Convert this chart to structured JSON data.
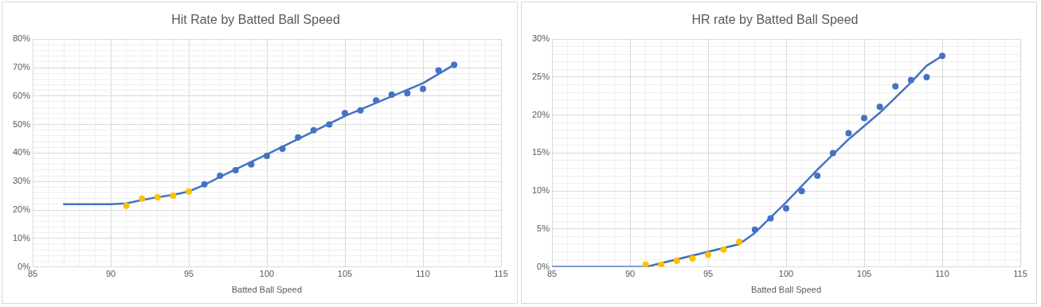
{
  "chart_data": [
    {
      "type": "scatter",
      "title": "Hit Rate by Batted Ball Speed",
      "xlabel": "Batted Ball Speed",
      "xlim": [
        85,
        115
      ],
      "ylim": [
        0,
        80
      ],
      "xticks": [
        85,
        {
          "value": 86,
          "label": null
        },
        {
          "value": 87,
          "label": null
        },
        {
          "value": 88,
          "label": null
        },
        {
          "value": 89,
          "label": null
        },
        90,
        {
          "value": 91,
          "label": null
        },
        {
          "value": 92,
          "label": null
        },
        {
          "value": 93,
          "label": null
        },
        {
          "value": 94,
          "label": null
        },
        95,
        {
          "value": 96,
          "label": null
        },
        {
          "value": 97,
          "label": null
        },
        {
          "value": 98,
          "label": null
        },
        {
          "value": 99,
          "label": null
        },
        100,
        {
          "value": 101,
          "label": null
        },
        {
          "value": 102,
          "label": null
        },
        {
          "value": 103,
          "label": null
        },
        {
          "value": 104,
          "label": null
        },
        105,
        {
          "value": 106,
          "label": null
        },
        {
          "value": 107,
          "label": null
        },
        {
          "value": 108,
          "label": null
        },
        {
          "value": 109,
          "label": null
        },
        110,
        {
          "value": 111,
          "label": null
        },
        {
          "value": 112,
          "label": null
        },
        {
          "value": 113,
          "label": null
        },
        {
          "value": 114,
          "label": null
        },
        115
      ],
      "yticks": [
        {
          "value": 0,
          "label": "0%"
        },
        {
          "value": 2,
          "label": null
        },
        {
          "value": 4,
          "label": null
        },
        {
          "value": 6,
          "label": null
        },
        {
          "value": 8,
          "label": null
        },
        {
          "value": 10,
          "label": "10%"
        },
        {
          "value": 12,
          "label": null
        },
        {
          "value": 14,
          "label": null
        },
        {
          "value": 16,
          "label": null
        },
        {
          "value": 18,
          "label": null
        },
        {
          "value": 20,
          "label": "20%"
        },
        {
          "value": 22,
          "label": null
        },
        {
          "value": 24,
          "label": null
        },
        {
          "value": 26,
          "label": null
        },
        {
          "value": 28,
          "label": null
        },
        {
          "value": 30,
          "label": "30%"
        },
        {
          "value": 32,
          "label": null
        },
        {
          "value": 34,
          "label": null
        },
        {
          "value": 36,
          "label": null
        },
        {
          "value": 38,
          "label": null
        },
        {
          "value": 40,
          "label": "40%"
        },
        {
          "value": 42,
          "label": null
        },
        {
          "value": 44,
          "label": null
        },
        {
          "value": 46,
          "label": null
        },
        {
          "value": 48,
          "label": null
        },
        {
          "value": 50,
          "label": "50%"
        },
        {
          "value": 52,
          "label": null
        },
        {
          "value": 54,
          "label": null
        },
        {
          "value": 56,
          "label": null
        },
        {
          "value": 58,
          "label": null
        },
        {
          "value": 60,
          "label": "60%"
        },
        {
          "value": 62,
          "label": null
        },
        {
          "value": 64,
          "label": null
        },
        {
          "value": 66,
          "label": null
        },
        {
          "value": 68,
          "label": null
        },
        {
          "value": 70,
          "label": "70%"
        },
        {
          "value": 72,
          "label": null
        },
        {
          "value": 74,
          "label": null
        },
        {
          "value": 76,
          "label": null
        },
        {
          "value": 78,
          "label": null
        },
        {
          "value": 80,
          "label": "80%"
        }
      ],
      "grid": true,
      "legend": false,
      "series": [
        {
          "type": "line",
          "color": "#4472c4",
          "marker": "none",
          "line_style": "solid",
          "x": [
            87,
            90,
            91,
            92,
            93,
            94,
            95,
            96,
            97,
            100,
            105,
            110,
            112
          ],
          "values": [
            22,
            22,
            22.3,
            23.5,
            24.5,
            25.3,
            26.5,
            28.8,
            31.6,
            39.5,
            53,
            64.5,
            71
          ]
        },
        {
          "color": "#ffc000",
          "marker": "circle",
          "x": [
            91,
            92,
            93,
            94,
            95
          ],
          "values": [
            21.5,
            24,
            24.5,
            25,
            26.5
          ]
        },
        {
          "color": "#4472c4",
          "marker": "circle",
          "x": [
            96,
            97,
            98,
            99,
            100,
            101,
            102,
            103,
            104,
            105,
            106,
            107,
            108,
            109,
            110,
            111,
            112
          ],
          "values": [
            29,
            32,
            34,
            36,
            39,
            41.5,
            45.5,
            48,
            50,
            54,
            55,
            58.5,
            60.5,
            61,
            62.5,
            69,
            71
          ]
        }
      ]
    },
    {
      "type": "scatter",
      "title": "HR rate by Batted Ball Speed",
      "xlabel": "Batted Ball Speed",
      "xlim": [
        85,
        115
      ],
      "ylim": [
        0,
        30
      ],
      "xticks": [
        85,
        {
          "value": 86,
          "label": null
        },
        {
          "value": 87,
          "label": null
        },
        {
          "value": 88,
          "label": null
        },
        {
          "value": 89,
          "label": null
        },
        90,
        {
          "value": 91,
          "label": null
        },
        {
          "value": 92,
          "label": null
        },
        {
          "value": 93,
          "label": null
        },
        {
          "value": 94,
          "label": null
        },
        95,
        {
          "value": 96,
          "label": null
        },
        {
          "value": 97,
          "label": null
        },
        {
          "value": 98,
          "label": null
        },
        {
          "value": 99,
          "label": null
        },
        100,
        {
          "value": 101,
          "label": null
        },
        {
          "value": 102,
          "label": null
        },
        {
          "value": 103,
          "label": null
        },
        {
          "value": 104,
          "label": null
        },
        105,
        {
          "value": 106,
          "label": null
        },
        {
          "value": 107,
          "label": null
        },
        {
          "value": 108,
          "label": null
        },
        {
          "value": 109,
          "label": null
        },
        110,
        {
          "value": 111,
          "label": null
        },
        {
          "value": 112,
          "label": null
        },
        {
          "value": 113,
          "label": null
        },
        {
          "value": 114,
          "label": null
        },
        115
      ],
      "yticks": [
        {
          "value": 0,
          "label": "0%"
        },
        {
          "value": 1,
          "label": null
        },
        {
          "value": 2,
          "label": null
        },
        {
          "value": 3,
          "label": null
        },
        {
          "value": 4,
          "label": null
        },
        {
          "value": 5,
          "label": "5%"
        },
        {
          "value": 6,
          "label": null
        },
        {
          "value": 7,
          "label": null
        },
        {
          "value": 8,
          "label": null
        },
        {
          "value": 9,
          "label": null
        },
        {
          "value": 10,
          "label": "10%"
        },
        {
          "value": 11,
          "label": null
        },
        {
          "value": 12,
          "label": null
        },
        {
          "value": 13,
          "label": null
        },
        {
          "value": 14,
          "label": null
        },
        {
          "value": 15,
          "label": "15%"
        },
        {
          "value": 16,
          "label": null
        },
        {
          "value": 17,
          "label": null
        },
        {
          "value": 18,
          "label": null
        },
        {
          "value": 19,
          "label": null
        },
        {
          "value": 20,
          "label": "20%"
        },
        {
          "value": 21,
          "label": null
        },
        {
          "value": 22,
          "label": null
        },
        {
          "value": 23,
          "label": null
        },
        {
          "value": 24,
          "label": null
        },
        {
          "value": 25,
          "label": "25%"
        },
        {
          "value": 26,
          "label": null
        },
        {
          "value": 27,
          "label": null
        },
        {
          "value": 28,
          "label": null
        },
        {
          "value": 29,
          "label": null
        },
        {
          "value": 30,
          "label": "30%"
        }
      ],
      "grid": true,
      "legend": false,
      "series": [
        {
          "type": "line",
          "color": "#4472c4",
          "marker": "none",
          "line_style": "solid",
          "x": [
            85,
            91,
            97,
            98,
            100,
            102,
            104,
            106,
            108,
            109,
            110
          ],
          "values": [
            0,
            0,
            3,
            4.5,
            8.5,
            12.8,
            16.8,
            20.3,
            24.3,
            26.5,
            27.8
          ]
        },
        {
          "type": "line",
          "color": "#a5a5a5",
          "marker": "none",
          "line_style": "dotted",
          "x": [
            91,
            97
          ],
          "values": [
            0,
            3
          ]
        },
        {
          "color": "#ffc000",
          "marker": "circle",
          "x": [
            91,
            92,
            93,
            94,
            95,
            96,
            97
          ],
          "values": [
            0.3,
            0.3,
            0.8,
            1.1,
            1.6,
            2.3,
            3.3
          ]
        },
        {
          "color": "#4472c4",
          "marker": "circle",
          "x": [
            98,
            99,
            100,
            101,
            102,
            103,
            104,
            105,
            106,
            107,
            108,
            109,
            110
          ],
          "values": [
            4.9,
            6.4,
            7.7,
            10,
            12,
            15,
            17.6,
            19.6,
            21.1,
            23.8,
            24.6,
            25,
            27.8
          ]
        }
      ]
    }
  ]
}
